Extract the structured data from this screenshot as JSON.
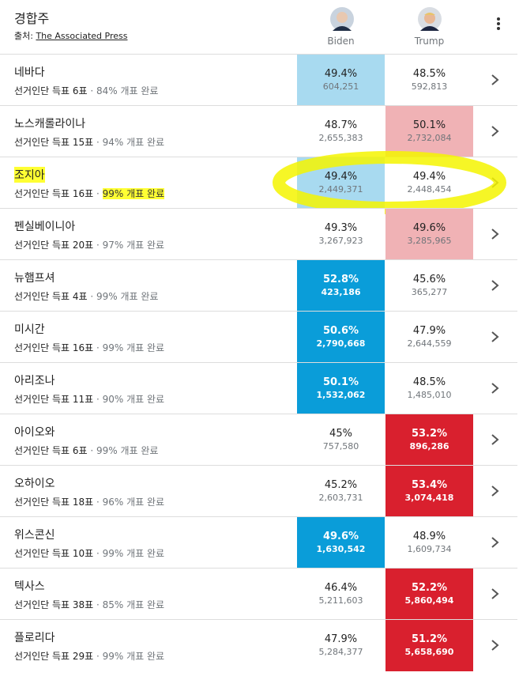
{
  "header": {
    "title": "경합주",
    "source_label": "출처:",
    "source_link": "The Associated Press"
  },
  "candidates": [
    "Biden",
    "Trump"
  ],
  "rows": [
    {
      "state": "네바다",
      "electors": "선거인단 득표 6표",
      "reported": "84% 개표 완료",
      "biden": {
        "percent": "49.4%",
        "votes": "604,251",
        "shade": "light"
      },
      "trump": {
        "percent": "48.5%",
        "votes": "592,813",
        "shade": "none"
      }
    },
    {
      "state": "노스캐롤라이나",
      "electors": "선거인단 득표 15표",
      "reported": "94% 개표 완료",
      "biden": {
        "percent": "48.7%",
        "votes": "2,655,383",
        "shade": "none"
      },
      "trump": {
        "percent": "50.1%",
        "votes": "2,732,084",
        "shade": "light"
      }
    },
    {
      "state": "조지아",
      "electors": "선거인단 득표 16표",
      "reported": "99% 개표 완료",
      "highlighted": true,
      "biden": {
        "percent": "49.4%",
        "votes": "2,449,371",
        "shade": "light"
      },
      "trump": {
        "percent": "49.4%",
        "votes": "2,448,454",
        "shade": "none"
      }
    },
    {
      "state": "펜실베이니아",
      "electors": "선거인단 득표 20표",
      "reported": "97% 개표 완료",
      "biden": {
        "percent": "49.3%",
        "votes": "3,267,923",
        "shade": "none"
      },
      "trump": {
        "percent": "49.6%",
        "votes": "3,285,965",
        "shade": "light"
      }
    },
    {
      "state": "뉴햄프셔",
      "electors": "선거인단 득표 4표",
      "reported": "99% 개표 완료",
      "biden": {
        "percent": "52.8%",
        "votes": "423,186",
        "shade": "strong"
      },
      "trump": {
        "percent": "45.6%",
        "votes": "365,277",
        "shade": "none"
      }
    },
    {
      "state": "미시간",
      "electors": "선거인단 득표 16표",
      "reported": "99% 개표 완료",
      "biden": {
        "percent": "50.6%",
        "votes": "2,790,668",
        "shade": "strong"
      },
      "trump": {
        "percent": "47.9%",
        "votes": "2,644,559",
        "shade": "none"
      }
    },
    {
      "state": "아리조나",
      "electors": "선거인단 득표 11표",
      "reported": "90% 개표 완료",
      "biden": {
        "percent": "50.1%",
        "votes": "1,532,062",
        "shade": "strong"
      },
      "trump": {
        "percent": "48.5%",
        "votes": "1,485,010",
        "shade": "none"
      }
    },
    {
      "state": "아이오와",
      "electors": "선거인단 득표 6표",
      "reported": "99% 개표 완료",
      "biden": {
        "percent": "45%",
        "votes": "757,580",
        "shade": "none"
      },
      "trump": {
        "percent": "53.2%",
        "votes": "896,286",
        "shade": "strong"
      }
    },
    {
      "state": "오하이오",
      "electors": "선거인단 득표 18표",
      "reported": "96% 개표 완료",
      "biden": {
        "percent": "45.2%",
        "votes": "2,603,731",
        "shade": "none"
      },
      "trump": {
        "percent": "53.4%",
        "votes": "3,074,418",
        "shade": "strong"
      }
    },
    {
      "state": "위스콘신",
      "electors": "선거인단 득표 10표",
      "reported": "99% 개표 완료",
      "biden": {
        "percent": "49.6%",
        "votes": "1,630,542",
        "shade": "strong"
      },
      "trump": {
        "percent": "48.9%",
        "votes": "1,609,734",
        "shade": "none"
      }
    },
    {
      "state": "텍사스",
      "electors": "선거인단 득표 38표",
      "reported": "85% 개표 완료",
      "biden": {
        "percent": "46.4%",
        "votes": "5,211,603",
        "shade": "none"
      },
      "trump": {
        "percent": "52.2%",
        "votes": "5,860,494",
        "shade": "strong"
      }
    },
    {
      "state": "플로리다",
      "electors": "선거인단 득표 29표",
      "reported": "99% 개표 완료",
      "biden": {
        "percent": "47.9%",
        "votes": "5,284,377",
        "shade": "none"
      },
      "trump": {
        "percent": "51.2%",
        "votes": "5,658,690",
        "shade": "strong"
      }
    }
  ]
}
